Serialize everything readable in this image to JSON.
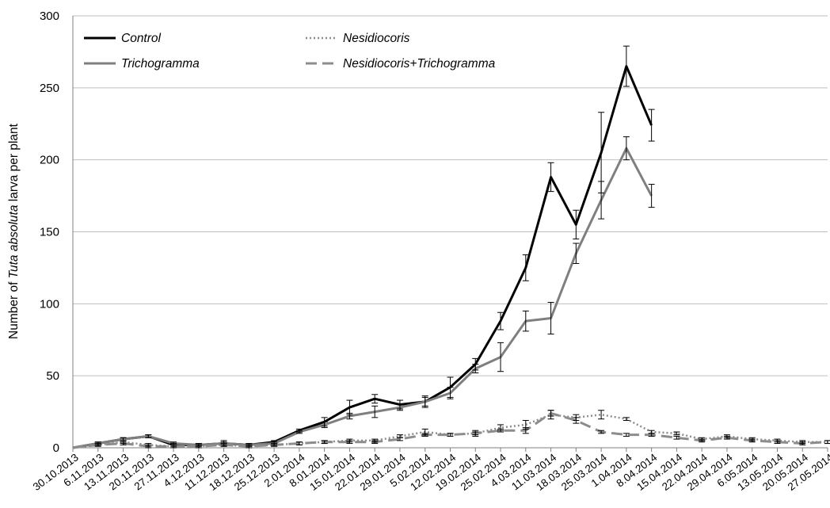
{
  "chart_data": {
    "type": "line",
    "ylabel": {
      "prefix": "Number of ",
      "italic": "Tuta absoluta",
      "suffix": " larva per plant"
    },
    "ylim": [
      0,
      300
    ],
    "yticks": [
      0,
      50,
      100,
      150,
      200,
      250,
      300
    ],
    "grid": "horizontal",
    "legend_position": "top",
    "categories": [
      "30.10.2013",
      "6.11.2013",
      "13.11.2013",
      "20.11.2013",
      "27.11.2013",
      "4.12.2013",
      "11.12.2013",
      "18.12.2013",
      "25.12.2013",
      "2.01.2014",
      "8.01.2014",
      "15.01.2014",
      "22.01.2014",
      "29.01.2014",
      "5.02.2014",
      "12.02.2014",
      "19.02.2014",
      "25.02.2014",
      "4.03.2014",
      "11.03.2014",
      "18.03.2014",
      "25.03.2014",
      "1.04.2014",
      "8.04.2014",
      "15.04.2014",
      "22.04.2014",
      "29.04.2014",
      "6.05.2014",
      "13.05.2014",
      "20.05.2014",
      "27.05.2014"
    ],
    "series": [
      {
        "name": "Control",
        "color": "#000000",
        "dash": "solid",
        "values": [
          0,
          3,
          6,
          8,
          2,
          2,
          3,
          2,
          4,
          12,
          18,
          28,
          34,
          30,
          32,
          42,
          58,
          88,
          125,
          188,
          155,
          205,
          265,
          224,
          null,
          null,
          null,
          null,
          null,
          null,
          null
        ],
        "errors": [
          0,
          1,
          1,
          1,
          1,
          1,
          2,
          1,
          1,
          1,
          3,
          5,
          3,
          3,
          3,
          7,
          4,
          6,
          9,
          10,
          10,
          28,
          14,
          11,
          null,
          null,
          null,
          null,
          null,
          null,
          null
        ]
      },
      {
        "name": "Nesidiocoris",
        "color": "#8c8c8c",
        "dash": "dotted",
        "values": [
          0,
          2,
          4,
          2,
          1,
          1,
          2,
          1,
          2,
          3,
          4,
          5,
          5,
          8,
          11,
          9,
          10,
          14,
          16,
          23,
          21,
          23,
          20,
          11,
          10,
          6,
          8,
          6,
          5,
          4,
          4
        ],
        "errors": [
          0,
          1,
          1,
          1,
          1,
          1,
          1,
          1,
          1,
          1,
          1,
          1,
          1,
          1,
          2,
          1,
          2,
          2,
          3,
          3,
          2,
          3,
          1,
          1,
          1,
          1,
          1,
          1,
          1,
          1,
          1
        ]
      },
      {
        "name": "Trichogramma",
        "color": "#7f7f7f",
        "dash": "solid",
        "values": [
          0,
          3,
          6,
          8,
          3,
          2,
          3,
          2,
          3,
          11,
          16,
          22,
          25,
          28,
          32,
          38,
          55,
          63,
          88,
          90,
          135,
          172,
          208,
          175,
          null,
          null,
          null,
          null,
          null,
          null,
          null
        ],
        "errors": [
          0,
          1,
          1,
          1,
          1,
          1,
          1,
          1,
          1,
          1,
          2,
          2,
          4,
          2,
          4,
          4,
          3,
          10,
          7,
          11,
          7,
          13,
          8,
          8,
          null,
          null,
          null,
          null,
          null,
          null,
          null
        ]
      },
      {
        "name": "Nesidiocoris+Trichogramma",
        "color": "#8c8c8c",
        "dash": "dashed",
        "values": [
          0,
          2,
          3,
          1,
          1,
          1,
          2,
          1,
          2,
          3,
          4,
          4,
          4,
          6,
          9,
          9,
          10,
          12,
          12,
          24,
          19,
          11,
          9,
          9,
          7,
          5,
          7,
          5,
          4,
          3,
          4
        ],
        "errors": [
          0,
          1,
          1,
          1,
          1,
          1,
          1,
          1,
          1,
          1,
          1,
          1,
          1,
          1,
          1,
          1,
          1,
          1,
          2,
          2,
          2,
          1,
          1,
          1,
          1,
          1,
          1,
          1,
          1,
          1,
          1
        ]
      }
    ]
  }
}
